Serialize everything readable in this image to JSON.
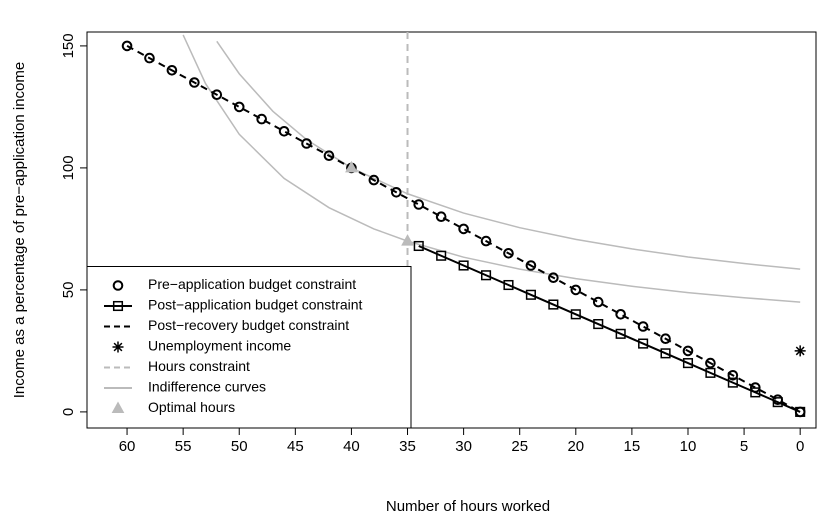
{
  "chart_data": {
    "type": "line",
    "xlabel": "Number of hours worked",
    "ylabel": "Income as a percentage of pre−application income",
    "xlim": [
      63.57,
      -1.5
    ],
    "ylim": [
      -6.6,
      155.7
    ],
    "xticks": [
      60,
      55,
      50,
      45,
      40,
      35,
      30,
      25,
      20,
      15,
      10,
      5,
      0
    ],
    "yticks": [
      0,
      50,
      100,
      150
    ],
    "legend": "bottom-left",
    "series": [
      {
        "name": "Pre−application budget constraint",
        "color": "#000000",
        "marker": "circle",
        "line": "none",
        "x": [
          60,
          58,
          56,
          54,
          52,
          50,
          48,
          46,
          44,
          42,
          40,
          38,
          36,
          34,
          32,
          30,
          28,
          26,
          24,
          22,
          20,
          18,
          16,
          14,
          12,
          10,
          8,
          6,
          4,
          2,
          0
        ],
        "values": [
          150,
          145,
          140,
          135,
          130,
          125,
          120,
          115,
          110,
          105,
          100,
          95,
          90,
          85,
          80,
          75,
          70,
          65,
          60,
          55,
          50,
          45,
          40,
          35,
          30,
          25,
          20,
          15,
          10,
          5,
          0
        ]
      },
      {
        "name": "Post−application budget constraint",
        "color": "#000000",
        "marker": "square",
        "line": "solid",
        "x": [
          34,
          32,
          30,
          28,
          26,
          24,
          22,
          20,
          18,
          16,
          14,
          12,
          10,
          8,
          6,
          4,
          2,
          0
        ],
        "values": [
          68,
          64,
          60,
          56,
          52,
          48,
          44,
          40,
          36,
          32,
          28,
          24,
          20,
          16,
          12,
          8,
          4,
          0
        ]
      },
      {
        "name": "Post−recovery budget constraint",
        "color": "#000000",
        "marker": "none",
        "line": "dashed",
        "x": [
          60,
          0
        ],
        "values": [
          150,
          0
        ]
      },
      {
        "name": "Unemployment income",
        "color": "#000000",
        "marker": "star",
        "line": "none",
        "x": [
          0
        ],
        "values": [
          25
        ]
      },
      {
        "name": "Hours constraint",
        "color": "#bbbbbb",
        "marker": "none",
        "line": "dashed",
        "xintercept": 35
      },
      {
        "name": "Indifference curves",
        "color": "#bbbbbb",
        "marker": "none",
        "line": "solid",
        "curves": [
          {
            "x": [
              52,
              50,
              47,
              44,
              40,
              35,
              30,
              25,
              20,
              15,
              10,
              5,
              0
            ],
            "values": [
              151.9,
              138.6,
              123.2,
              111.6,
              100,
              89.4,
              81.5,
              75.5,
              70.7,
              66.8,
              63.5,
              60.8,
              58.5
            ]
          },
          {
            "x": [
              55,
              53,
              50,
              46,
              42,
              38,
              35,
              30,
              25,
              20,
              15,
              10,
              5,
              0
            ],
            "values": [
              154.5,
              134.5,
              113.8,
              95.7,
              83.7,
              75,
              70,
              63.4,
              58.5,
              54.6,
              51.5,
              48.9,
              46.8,
              45
            ]
          }
        ]
      },
      {
        "name": "Optimal hours",
        "color": "#bbbbbb",
        "marker": "triangle",
        "line": "none",
        "x": [
          40,
          35
        ],
        "values": [
          100,
          70
        ]
      }
    ]
  }
}
